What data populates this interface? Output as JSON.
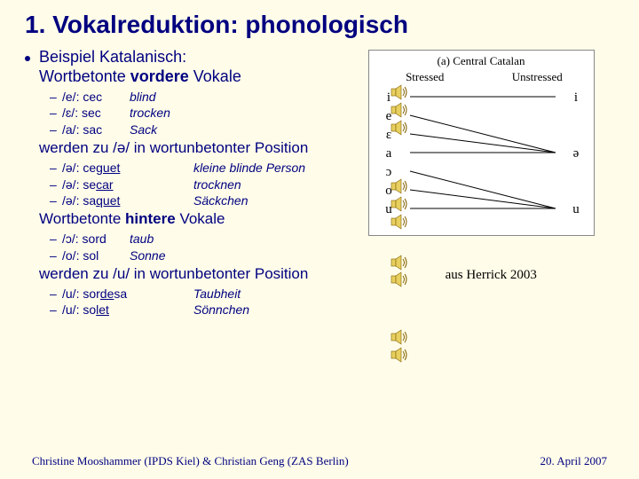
{
  "title": "1. Vokalreduktion: phonologisch",
  "main_bullet_1a": "Beispiel Katalanisch:",
  "main_bullet_1b_pre": "Wortbetonte ",
  "main_bullet_1b_bold": "vordere",
  "main_bullet_1b_post": " Vokale",
  "group1": [
    {
      "ipa": "/e/: cec",
      "gloss": "blind"
    },
    {
      "ipa": "/ɛ/: sec",
      "gloss": "trocken"
    },
    {
      "ipa": "/a/: sac",
      "gloss": "Sack"
    }
  ],
  "mid1": "werden zu /ə/ in wortunbetonter Position",
  "group2": [
    {
      "ipa": "/ə/: ",
      "word_pre": "ce",
      "word_u": "guet",
      "gloss": "kleine blinde Person"
    },
    {
      "ipa": "/ə/: ",
      "word_pre": "se",
      "word_u": "car",
      "gloss": "trocknen"
    },
    {
      "ipa": "/ə/: ",
      "word_pre": "sa",
      "word_u": "quet",
      "gloss": "Säckchen"
    }
  ],
  "mid2_pre": "Wortbetonte ",
  "mid2_bold": "hintere",
  "mid2_post": " Vokale",
  "group3": [
    {
      "ipa": "/ɔ/: sord",
      "gloss": "taub"
    },
    {
      "ipa": "/o/: sol",
      "gloss": "Sonne"
    }
  ],
  "mid3": "werden zu /u/ in wortunbetonter Position",
  "group4": [
    {
      "ipa": "/u/: ",
      "word_pre": "sor",
      "word_u": "de",
      "word_post": "sa",
      "gloss": "Taubheit"
    },
    {
      "ipa": "/u/: ",
      "word_pre": "so",
      "word_u": "let",
      "word_post": "",
      "gloss": "Sönnchen"
    }
  ],
  "speaker_positions_y": [
    0,
    20,
    40,
    106,
    126,
    146,
    192,
    211,
    276,
    296
  ],
  "figure": {
    "title": "(a) Central Catalan",
    "col_left": "Stressed",
    "col_right": "Unstressed",
    "left_labels": [
      "i",
      "e",
      "ɛ",
      "a",
      "ɔ",
      "o",
      "u"
    ],
    "right_labels": [
      "i",
      "ə",
      "u"
    ],
    "line_color": "#000000",
    "label_color": "#000000",
    "label_fontsize": 15,
    "bg": "#ffffff",
    "mapping": [
      {
        "from": 0,
        "to": 0
      },
      {
        "from": 1,
        "to": 1
      },
      {
        "from": 2,
        "to": 1
      },
      {
        "from": 3,
        "to": 1
      },
      {
        "from": 4,
        "to": 2
      },
      {
        "from": 5,
        "to": 2
      },
      {
        "from": 6,
        "to": 2
      }
    ]
  },
  "caption": "aus Herrick 2003",
  "footer_left": "Christine Mooshammer (IPDS Kiel) & Christian Geng (ZAS Berlin)",
  "footer_right": "20. April 2007",
  "colors": {
    "text": "#000080",
    "bg": "#fffde9"
  }
}
